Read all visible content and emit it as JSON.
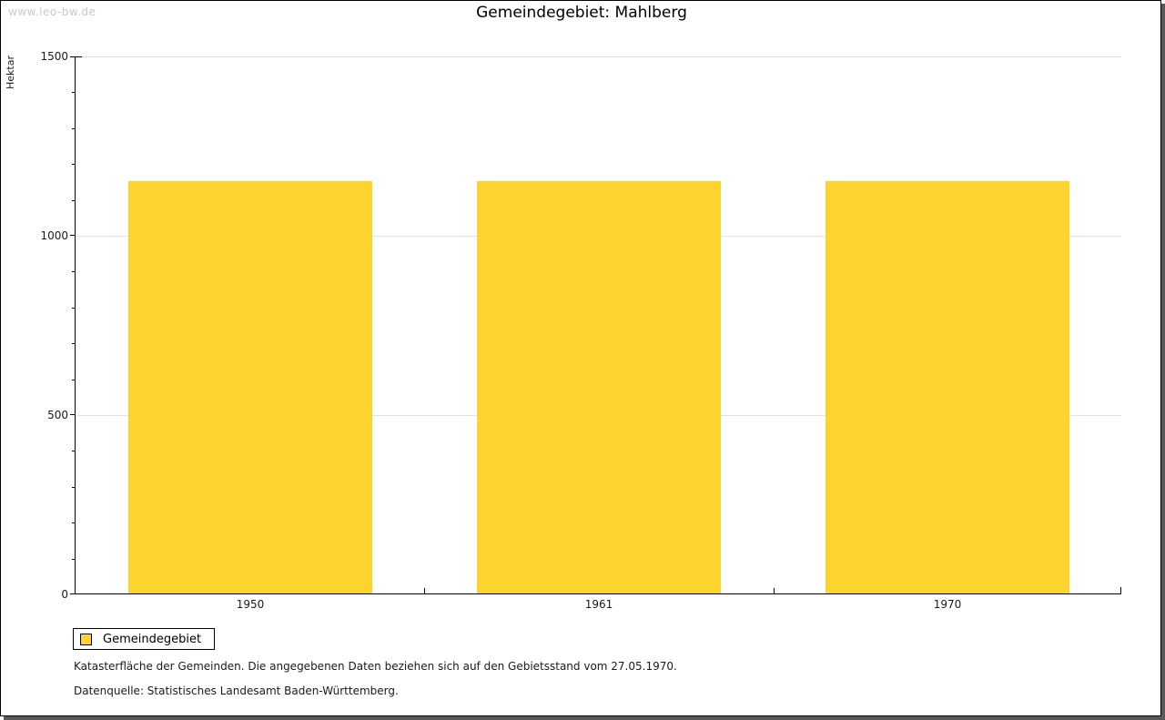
{
  "page": {
    "watermark": "www.leo-bw.de",
    "title": "Gemeindegebiet: Mahlberg"
  },
  "chart_data": {
    "type": "bar",
    "title": "Gemeindegebiet: Mahlberg",
    "categories": [
      "1950",
      "1961",
      "1970"
    ],
    "values": [
      1150,
      1150,
      1150
    ],
    "series_name": "Gemeindegebiet",
    "xlabel": "",
    "ylabel": "Hektar",
    "ylim": [
      0,
      1500
    ],
    "ytick_major_step": 500,
    "ytick_minor_step": 100,
    "ytick_labels": [
      "0",
      "500",
      "1000",
      "1500"
    ],
    "grid": "horizontal-major",
    "legend_position": "bottom-left",
    "bar_color": "#FCD42D",
    "grid_color": "#e2e2e2"
  },
  "legend": {
    "label": "Gemeindegebiet",
    "swatch_color": "#FCD42D"
  },
  "footnotes": [
    "Katasterfläche der Gemeinden. Die angegebenen Daten beziehen sich auf den Gebietsstand vom 27.05.1970.",
    "Datenquelle: Statistisches Landesamt Baden-Württemberg."
  ]
}
